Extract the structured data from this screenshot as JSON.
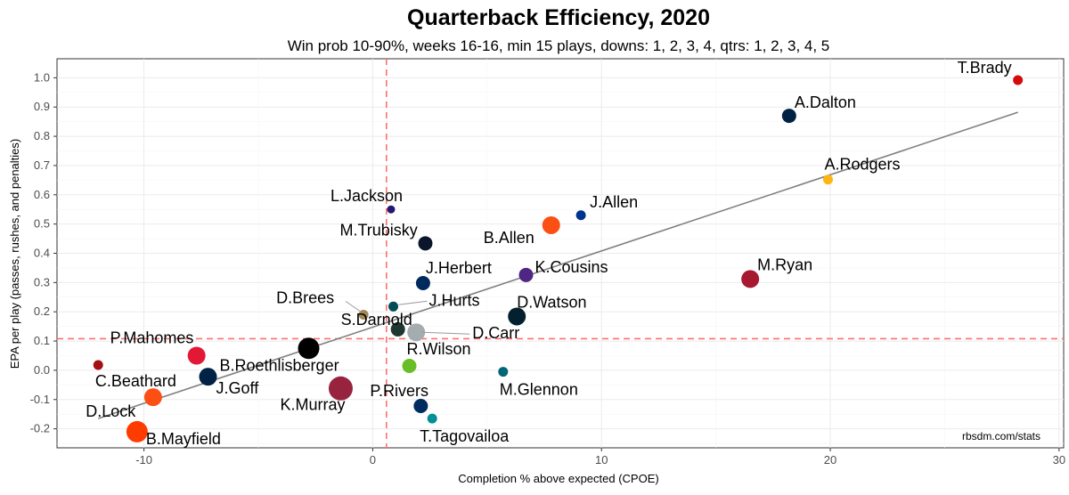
{
  "chart_data": {
    "type": "scatter",
    "title": "Quarterback Efficiency, 2020",
    "subtitle": "Win prob 10-90%, weeks 16-16, min 15 plays, downs: 1, 2, 3, 4, qtrs: 1, 2, 3, 4, 5",
    "xlabel": "Completion % above expected (CPOE)",
    "ylabel": "EPA per play (passes, rushes, and penalties)",
    "credit": "rbsdm.com/stats",
    "xlim": [
      -13.8,
      30.2
    ],
    "ylim": [
      -0.265,
      1.065
    ],
    "xticks": [
      -10,
      0,
      10,
      20,
      30
    ],
    "yticks": [
      1.0,
      0.9,
      0.8,
      0.7,
      0.6,
      0.5,
      0.4,
      0.3,
      0.2,
      0.1,
      0.0,
      -0.1,
      -0.2
    ],
    "mean_x": 0.6,
    "mean_y": 0.108,
    "trend": {
      "x0": -12.0,
      "y0": -0.165,
      "x1": 28.2,
      "y1": 0.882
    },
    "points": [
      {
        "name": "T.Brady",
        "x": 28.2,
        "y": 0.992,
        "size": "small",
        "color": "#d50a0a"
      },
      {
        "name": "A.Dalton",
        "x": 18.2,
        "y": 0.87,
        "size": "medium",
        "color": "#002244"
      },
      {
        "name": "A.Rodgers",
        "x": 19.9,
        "y": 0.652,
        "size": "small",
        "color": "#ffb612"
      },
      {
        "name": "J.Allen",
        "x": 9.1,
        "y": 0.53,
        "size": "small",
        "color": "#00338d"
      },
      {
        "name": "L.Jackson",
        "x": 0.8,
        "y": 0.55,
        "size": "tiny",
        "color": "#241773"
      },
      {
        "name": "B.Allen",
        "x": 7.8,
        "y": 0.496,
        "size": "large",
        "color": "#fb4f14"
      },
      {
        "name": "M.Trubisky",
        "x": 2.3,
        "y": 0.434,
        "size": "medium",
        "color": "#0b162a"
      },
      {
        "name": "K.Cousins",
        "x": 6.7,
        "y": 0.326,
        "size": "medium",
        "color": "#4f2683"
      },
      {
        "name": "M.Ryan",
        "x": 16.5,
        "y": 0.312,
        "size": "large",
        "color": "#a71930"
      },
      {
        "name": "J.Herbert",
        "x": 2.2,
        "y": 0.298,
        "size": "medium",
        "color": "#002a5e"
      },
      {
        "name": "J.Hurts",
        "x": 0.9,
        "y": 0.218,
        "size": "small",
        "color": "#004c54"
      },
      {
        "name": "D.Brees",
        "x": -0.4,
        "y": 0.19,
        "size": "small",
        "color": "#9f8958"
      },
      {
        "name": "D.Watson",
        "x": 6.3,
        "y": 0.184,
        "size": "large",
        "color": "#03202f"
      },
      {
        "name": "S.Darnold",
        "x": 1.1,
        "y": 0.14,
        "size": "medium",
        "color": "#203731"
      },
      {
        "name": "D.Carr",
        "x": 1.9,
        "y": 0.13,
        "size": "large",
        "color": "#a5acaf"
      },
      {
        "name": "P.Mahomes",
        "x": -7.7,
        "y": 0.05,
        "size": "large",
        "color": "#e31837"
      },
      {
        "name": "R.Wilson",
        "x": 1.6,
        "y": 0.015,
        "size": "medium",
        "color": "#69be28"
      },
      {
        "name": "M.Glennon",
        "x": 5.7,
        "y": -0.005,
        "size": "small",
        "color": "#006778"
      },
      {
        "name": "B.Roethlisberger",
        "x": -2.8,
        "y": 0.075,
        "size": "xlarge",
        "color": "#000000"
      },
      {
        "name": "J.Goff",
        "x": -7.2,
        "y": -0.022,
        "size": "large",
        "color": "#002244"
      },
      {
        "name": "K.Murray",
        "x": -1.4,
        "y": -0.062,
        "size": "xxlarge",
        "color": "#97233f"
      },
      {
        "name": "C.Beathard",
        "x": -9.6,
        "y": -0.092,
        "size": "large",
        "color": "#fb4f14"
      },
      {
        "name": "P.Rivers",
        "x": 2.1,
        "y": -0.122,
        "size": "medium",
        "color": "#002c5f"
      },
      {
        "name": "T.Tagovailoa",
        "x": 2.6,
        "y": -0.165,
        "size": "small",
        "color": "#008e97"
      },
      {
        "name": "D.Lock",
        "x": -12.0,
        "y": 0.018,
        "size": "small",
        "color": "#a50f14"
      },
      {
        "name": "B.Mayfield",
        "x": -10.3,
        "y": -0.21,
        "size": "xlarge",
        "color": "#ff3c00"
      }
    ]
  }
}
